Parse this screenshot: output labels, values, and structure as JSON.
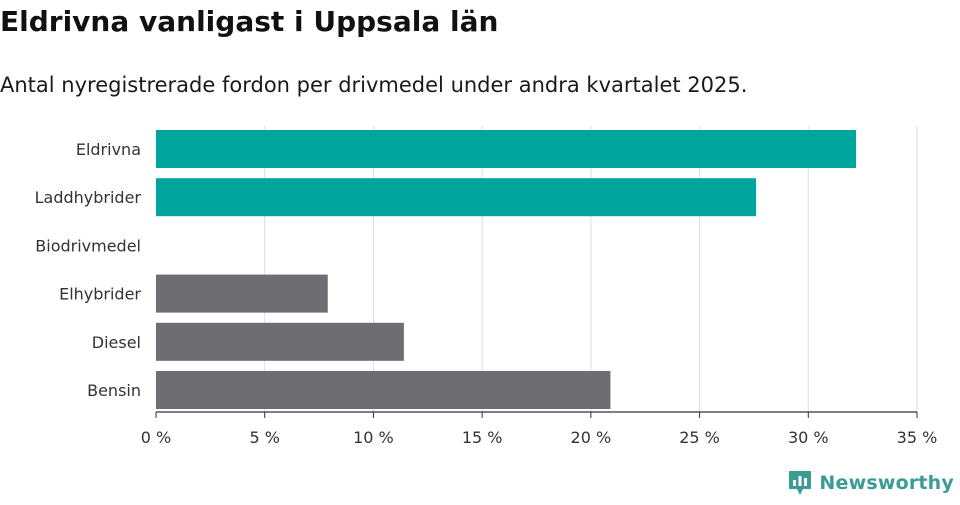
{
  "header": {
    "title": "Eldrivna vanligast i Uppsala län",
    "subtitle": "Antal nyregistrerade fordon per drivmedel under andra kvartalet 2025."
  },
  "chart_data": {
    "type": "bar",
    "orientation": "horizontal",
    "categories": [
      "Eldrivna",
      "Laddhybrider",
      "Biodrivmedel",
      "Elhybrider",
      "Diesel",
      "Bensin"
    ],
    "values": [
      32.2,
      27.6,
      0,
      7.9,
      11.4,
      20.9
    ],
    "colors": [
      "#00a59b",
      "#00a59b",
      "#00a59b",
      "#6e6d72",
      "#6e6d72",
      "#6e6d72"
    ],
    "xlim": [
      0,
      35
    ],
    "xticks": [
      0,
      5,
      10,
      15,
      20,
      25,
      30,
      35
    ],
    "xtick_suffix": " %",
    "grid": true,
    "title": "Eldrivna vanligast i Uppsala län",
    "subtitle": "Antal nyregistrerade fordon per drivmedel under andra kvartalet 2025."
  },
  "branding": {
    "logo_text": "Newsworthy",
    "logo_color": "#3b9c96",
    "logo_icon": "bar-chart-speech-bubble-icon"
  }
}
